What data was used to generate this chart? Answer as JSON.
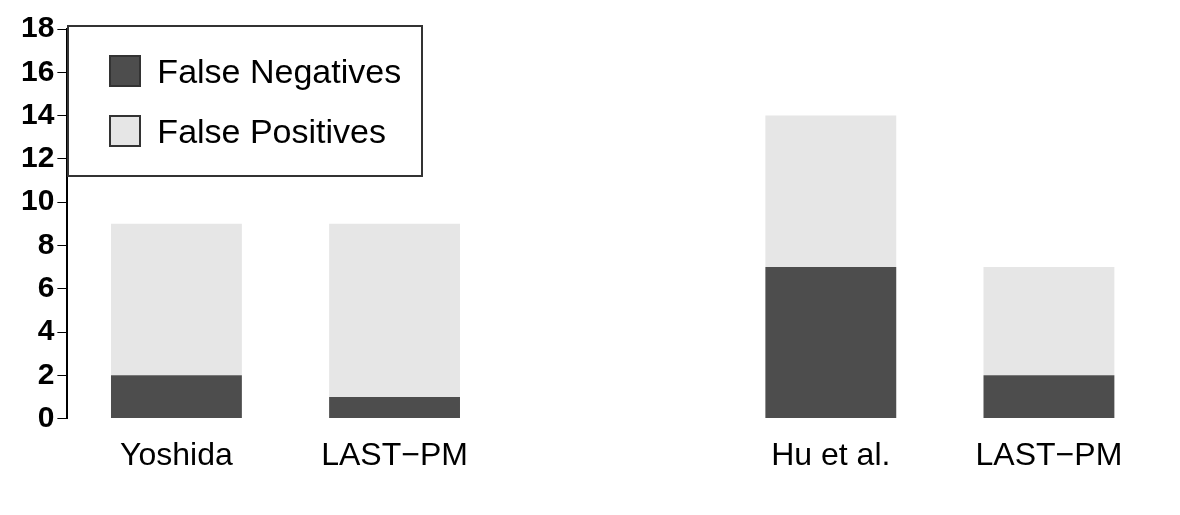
{
  "chart_data": {
    "type": "bar",
    "stacked": true,
    "categories": [
      "Yoshida",
      "LAST−PM",
      null,
      "Hu et al.",
      "LAST−PM"
    ],
    "series": [
      {
        "name": "False Negatives",
        "color": "#4d4d4d",
        "values": [
          2,
          1,
          null,
          7,
          2
        ]
      },
      {
        "name": "False Positives",
        "color": "#e6e6e6",
        "values": [
          7,
          8,
          null,
          7,
          5
        ]
      }
    ],
    "ylim": [
      0,
      18
    ],
    "yticks": [
      0,
      2,
      4,
      6,
      8,
      10,
      12,
      14,
      16,
      18
    ],
    "grid": false,
    "legend": "top left"
  }
}
